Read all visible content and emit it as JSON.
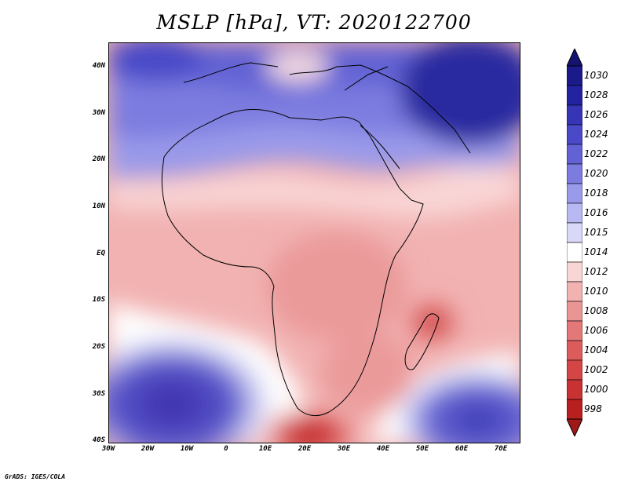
{
  "title": "MSLP [hPa], VT: 2020122700",
  "footer": "GrADS: IGES/COLA",
  "axes": {
    "lat_labels": [
      "40N",
      "30N",
      "20N",
      "10N",
      "EQ",
      "10S",
      "20S",
      "30S",
      "40S"
    ],
    "lon_labels": [
      "30W",
      "20W",
      "10W",
      "0",
      "10E",
      "20E",
      "30E",
      "40E",
      "50E",
      "60E",
      "70E"
    ]
  },
  "colorbar": {
    "labels": [
      "1030",
      "1028",
      "1026",
      "1024",
      "1022",
      "1020",
      "1018",
      "1016",
      "1015",
      "1014",
      "1012",
      "1010",
      "1008",
      "1006",
      "1004",
      "1002",
      "1000",
      "998"
    ],
    "colors": [
      "#1a1a8a",
      "#2323a0",
      "#3535b6",
      "#4a4ac8",
      "#6262d4",
      "#7c7ce0",
      "#9a9aea",
      "#b8b8f2",
      "#d8d8f8",
      "#ffffff",
      "#f9d6d6",
      "#f2b2b2",
      "#eb9494",
      "#e47878",
      "#dc5c5c",
      "#d44646",
      "#c83232",
      "#b82020"
    ],
    "low_arrow_color": "#a01818",
    "high_arrow_color": "#141470"
  }
}
